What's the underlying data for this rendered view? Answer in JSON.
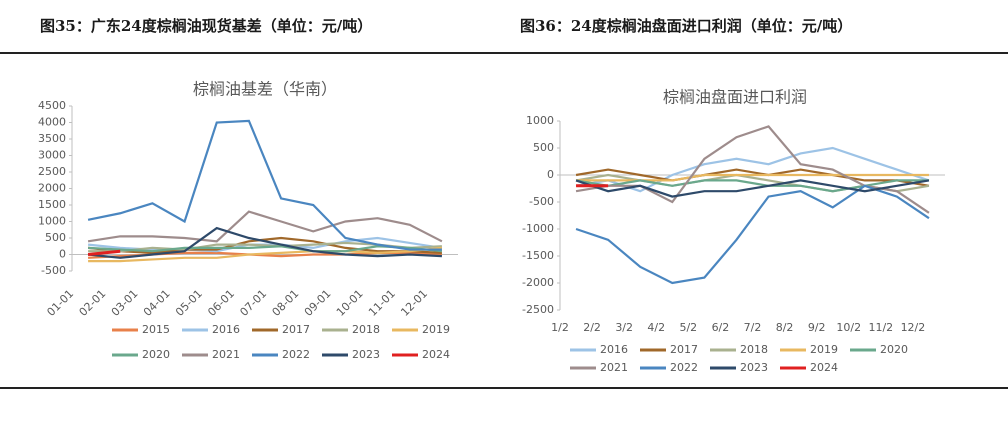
{
  "chart_data": [
    {
      "type": "line",
      "figure_title": "图35：广东24度棕榈油现货基差（单位：元/吨）",
      "title": "棕榈油基差（华南）",
      "categories": [
        "01-01",
        "02-01",
        "03-01",
        "04-01",
        "05-01",
        "06-01",
        "07-01",
        "08-01",
        "09-01",
        "10-01",
        "11-01",
        "12-01"
      ],
      "ylim": [
        -500,
        4500
      ],
      "yticks": [
        -500,
        0,
        500,
        1000,
        1500,
        2000,
        2500,
        3000,
        3500,
        4000,
        4500
      ],
      "series": [
        {
          "name": "2015",
          "color": "#e8804a",
          "values": [
            -100,
            -50,
            0,
            50,
            50,
            0,
            -50,
            0,
            0,
            50,
            50,
            0
          ]
        },
        {
          "name": "2016",
          "color": "#9dc3e6",
          "values": [
            300,
            200,
            150,
            150,
            100,
            300,
            300,
            200,
            400,
            500,
            350,
            200
          ]
        },
        {
          "name": "2017",
          "color": "#a0682a",
          "values": [
            200,
            100,
            50,
            150,
            150,
            400,
            500,
            400,
            200,
            100,
            100,
            50
          ]
        },
        {
          "name": "2018",
          "color": "#a9b18f",
          "values": [
            100,
            100,
            200,
            150,
            300,
            300,
            250,
            300,
            350,
            300,
            200,
            250
          ]
        },
        {
          "name": "2019",
          "color": "#e8b860",
          "values": [
            -200,
            -200,
            -150,
            -100,
            -100,
            0,
            50,
            100,
            100,
            50,
            100,
            200
          ]
        },
        {
          "name": "2020",
          "color": "#6aa88c",
          "values": [
            200,
            150,
            100,
            200,
            200,
            200,
            250,
            100,
            100,
            250,
            200,
            100
          ]
        },
        {
          "name": "2021",
          "color": "#9e8c8c",
          "values": [
            400,
            550,
            550,
            500,
            400,
            1300,
            1000,
            700,
            1000,
            1100,
            900,
            400
          ]
        },
        {
          "name": "2022",
          "color": "#4a86c0",
          "values": [
            1050,
            1250,
            1550,
            1000,
            4000,
            4050,
            1700,
            1500,
            500,
            300,
            150,
            150
          ]
        },
        {
          "name": "2023",
          "color": "#2e4a6a",
          "values": [
            0,
            -100,
            0,
            100,
            800,
            500,
            300,
            100,
            0,
            -50,
            0,
            -50
          ]
        },
        {
          "name": "2024",
          "color": "#e02020",
          "values": [
            0,
            100,
            null,
            null,
            null,
            null,
            null,
            null,
            null,
            null,
            null,
            null
          ]
        }
      ]
    },
    {
      "type": "line",
      "figure_title": "图36：24度棕榈油盘面进口利润（单位：元/吨）",
      "title": "棕榈油盘面进口利润",
      "categories": [
        "1/2",
        "2/2",
        "3/2",
        "4/2",
        "5/2",
        "6/2",
        "7/2",
        "8/2",
        "9/2",
        "10/2",
        "11/2",
        "12/2"
      ],
      "ylim": [
        -2500,
        1000
      ],
      "yticks": [
        -2500,
        -2000,
        -1500,
        -1000,
        -500,
        0,
        500,
        1000
      ],
      "series": [
        {
          "name": "2016",
          "color": "#9dc3e6",
          "values": [
            -200,
            -100,
            -300,
            0,
            200,
            300,
            200,
            400,
            500,
            300,
            100,
            -100
          ]
        },
        {
          "name": "2017",
          "color": "#a0682a",
          "values": [
            0,
            100,
            0,
            -100,
            0,
            100,
            0,
            100,
            0,
            -100,
            -100,
            -200
          ]
        },
        {
          "name": "2018",
          "color": "#a9b18f",
          "values": [
            -100,
            0,
            -100,
            -200,
            -100,
            0,
            -100,
            -200,
            -300,
            -200,
            -300,
            -200
          ]
        },
        {
          "name": "2019",
          "color": "#e8b860",
          "values": [
            -100,
            -100,
            -100,
            -100,
            0,
            0,
            0,
            0,
            0,
            0,
            0,
            0
          ]
        },
        {
          "name": "2020",
          "color": "#6aa88c",
          "values": [
            -100,
            -200,
            -100,
            -200,
            -100,
            -100,
            -200,
            -200,
            -300,
            -200,
            -100,
            -100
          ]
        },
        {
          "name": "2021",
          "color": "#9e8c8c",
          "values": [
            -300,
            -200,
            -200,
            -500,
            300,
            700,
            900,
            200,
            100,
            -200,
            -300,
            -700
          ]
        },
        {
          "name": "2022",
          "color": "#4a86c0",
          "values": [
            -1000,
            -1200,
            -1700,
            -2000,
            -1900,
            -1200,
            -400,
            -300,
            -600,
            -200,
            -400,
            -800
          ]
        },
        {
          "name": "2023",
          "color": "#2e4a6a",
          "values": [
            -100,
            -300,
            -200,
            -400,
            -300,
            -300,
            -200,
            -100,
            -200,
            -300,
            -200,
            -100
          ]
        },
        {
          "name": "2024",
          "color": "#e02020",
          "values": [
            -200,
            -200,
            null,
            null,
            null,
            null,
            null,
            null,
            null,
            null,
            null,
            null
          ]
        }
      ]
    }
  ]
}
